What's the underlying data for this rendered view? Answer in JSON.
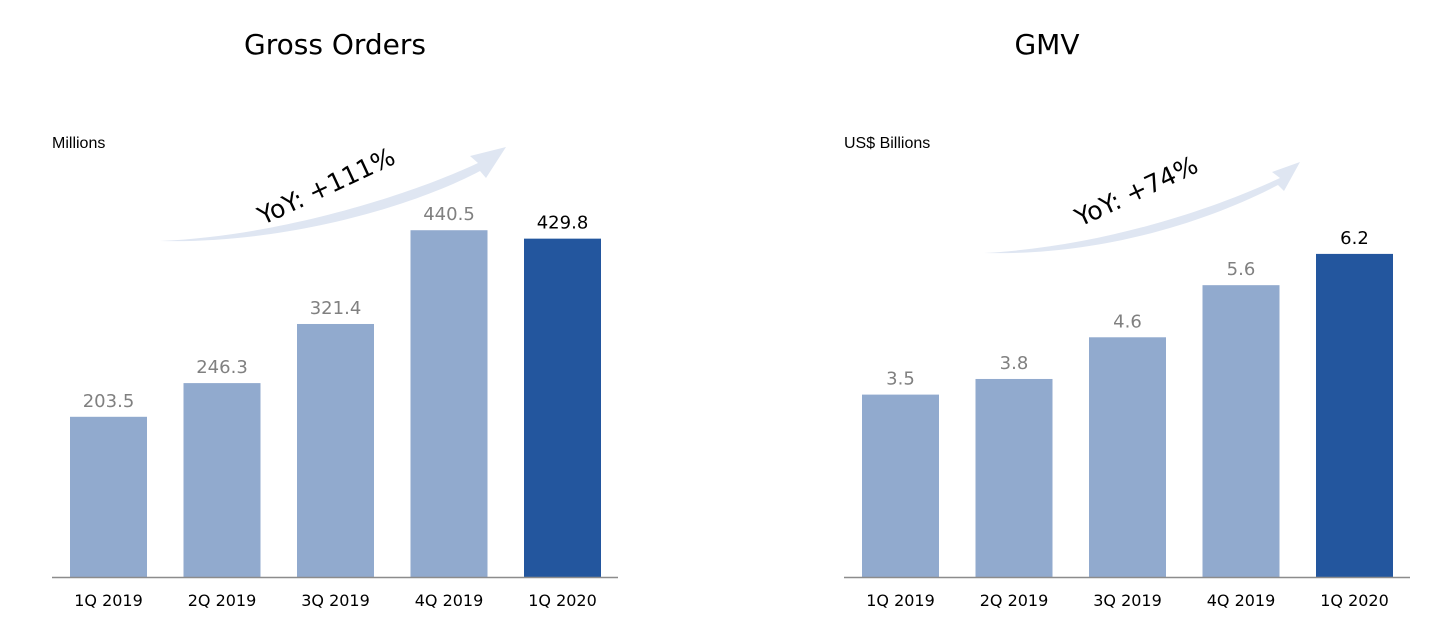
{
  "colors": {
    "bar_past": "#91aace",
    "bar_current": "#23569e",
    "label_past": "#808080",
    "label_current": "#000000",
    "axis": "#8c8c8c",
    "arrow": "#dfe6f2"
  },
  "chart_data": [
    {
      "type": "bar",
      "title": "Gross Orders",
      "ylabel": "Millions",
      "annotation": "YoY: +111%",
      "categories": [
        "1Q 2019",
        "2Q 2019",
        "3Q 2019",
        "4Q 2019",
        "1Q 2020"
      ],
      "values": [
        203.5,
        246.3,
        321.4,
        440.5,
        429.8
      ],
      "value_labels": [
        "203.5",
        "246.3",
        "321.4",
        "440.5",
        "429.8"
      ],
      "highlight_index": 4,
      "ylim": [
        0,
        470
      ]
    },
    {
      "type": "bar",
      "title": "GMV",
      "ylabel": "US$ Billions",
      "annotation": "YoY: +74%",
      "categories": [
        "1Q 2019",
        "2Q 2019",
        "3Q 2019",
        "4Q 2019",
        "1Q 2020"
      ],
      "values": [
        3.5,
        3.8,
        4.6,
        5.6,
        6.2
      ],
      "value_labels": [
        "3.5",
        "3.8",
        "4.6",
        "5.6",
        "6.2"
      ],
      "highlight_index": 4,
      "ylim": [
        0,
        7.1
      ]
    }
  ]
}
